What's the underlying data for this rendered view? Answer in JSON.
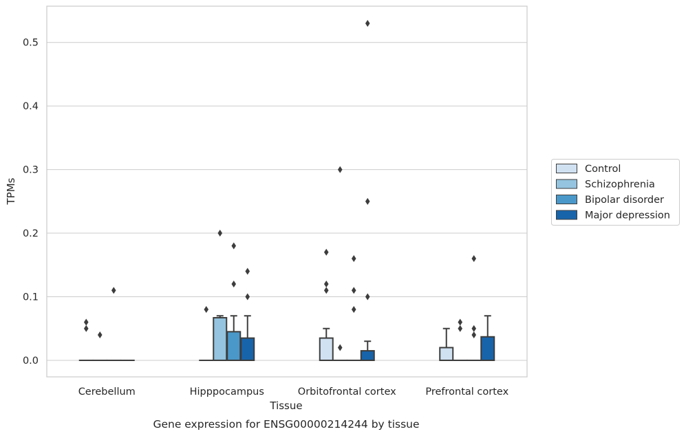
{
  "chart_data": {
    "type": "box",
    "title": "",
    "xlabel": "Tissue",
    "ylabel": "TPMs",
    "caption": "Gene expression for ENSG00000214244 by tissue",
    "categories": [
      "Cerebellum",
      "Hipppocampus",
      "Orbitofrontal cortex",
      "Prefrontal cortex"
    ],
    "ylim": [
      -0.026,
      0.557
    ],
    "yticks": [
      0.0,
      0.1,
      0.2,
      0.3,
      0.4,
      0.5
    ],
    "ytick_labels": [
      "0.0",
      "0.1",
      "0.2",
      "0.3",
      "0.4",
      "0.5"
    ],
    "grid": "horizontal",
    "legend_position": "right",
    "series": [
      {
        "name": "Control",
        "color": "#d0e1f2",
        "boxes": [
          {
            "q1": 0,
            "median": 0,
            "q3": 0,
            "whislo": 0,
            "whishi": 0,
            "fliers": [
              0.06,
              0.05
            ]
          },
          {
            "q1": 0,
            "median": 0,
            "q3": 0,
            "whislo": 0,
            "whishi": 0,
            "fliers": [
              0.08
            ]
          },
          {
            "q1": 0,
            "median": 0,
            "q3": 0.035,
            "whislo": 0,
            "whishi": 0.05,
            "fliers": [
              0.17,
              0.12,
              0.11
            ]
          },
          {
            "q1": 0,
            "median": 0,
            "q3": 0.02,
            "whislo": 0,
            "whishi": 0.05,
            "fliers": []
          }
        ]
      },
      {
        "name": "Schizophrenia",
        "color": "#94c4df",
        "boxes": [
          {
            "q1": 0,
            "median": 0,
            "q3": 0,
            "whislo": 0,
            "whishi": 0,
            "fliers": [
              0.04
            ]
          },
          {
            "q1": 0,
            "median": 0,
            "q3": 0.067,
            "whislo": 0,
            "whishi": 0.07,
            "fliers": [
              0.2
            ]
          },
          {
            "q1": 0,
            "median": 0,
            "q3": 0,
            "whislo": 0,
            "whishi": 0,
            "fliers": [
              0.3,
              0.02
            ]
          },
          {
            "q1": 0,
            "median": 0,
            "q3": 0,
            "whislo": 0,
            "whishi": 0,
            "fliers": [
              0.06,
              0.05
            ]
          }
        ]
      },
      {
        "name": "Bipolar disorder",
        "color": "#4a98c9",
        "boxes": [
          {
            "q1": 0,
            "median": 0,
            "q3": 0,
            "whislo": 0,
            "whishi": 0,
            "fliers": [
              0.11
            ]
          },
          {
            "q1": 0,
            "median": 0,
            "q3": 0.045,
            "whislo": 0,
            "whishi": 0.07,
            "fliers": [
              0.18,
              0.12
            ]
          },
          {
            "q1": 0,
            "median": 0,
            "q3": 0,
            "whislo": 0,
            "whishi": 0,
            "fliers": [
              0.16,
              0.11,
              0.08
            ]
          },
          {
            "q1": 0,
            "median": 0,
            "q3": 0,
            "whislo": 0,
            "whishi": 0,
            "fliers": [
              0.16,
              0.05,
              0.04
            ]
          }
        ]
      },
      {
        "name": "Major depression",
        "color": "#1764ab",
        "boxes": [
          {
            "q1": 0,
            "median": 0,
            "q3": 0,
            "whislo": 0,
            "whishi": 0,
            "fliers": []
          },
          {
            "q1": 0,
            "median": 0,
            "q3": 0.035,
            "whislo": 0,
            "whishi": 0.07,
            "fliers": [
              0.14,
              0.1
            ]
          },
          {
            "q1": 0,
            "median": 0,
            "q3": 0.015,
            "whislo": 0,
            "whishi": 0.03,
            "fliers": [
              0.53,
              0.25,
              0.1
            ]
          },
          {
            "q1": 0,
            "median": 0,
            "q3": 0.037,
            "whislo": 0,
            "whishi": 0.07,
            "fliers": []
          }
        ]
      }
    ]
  }
}
